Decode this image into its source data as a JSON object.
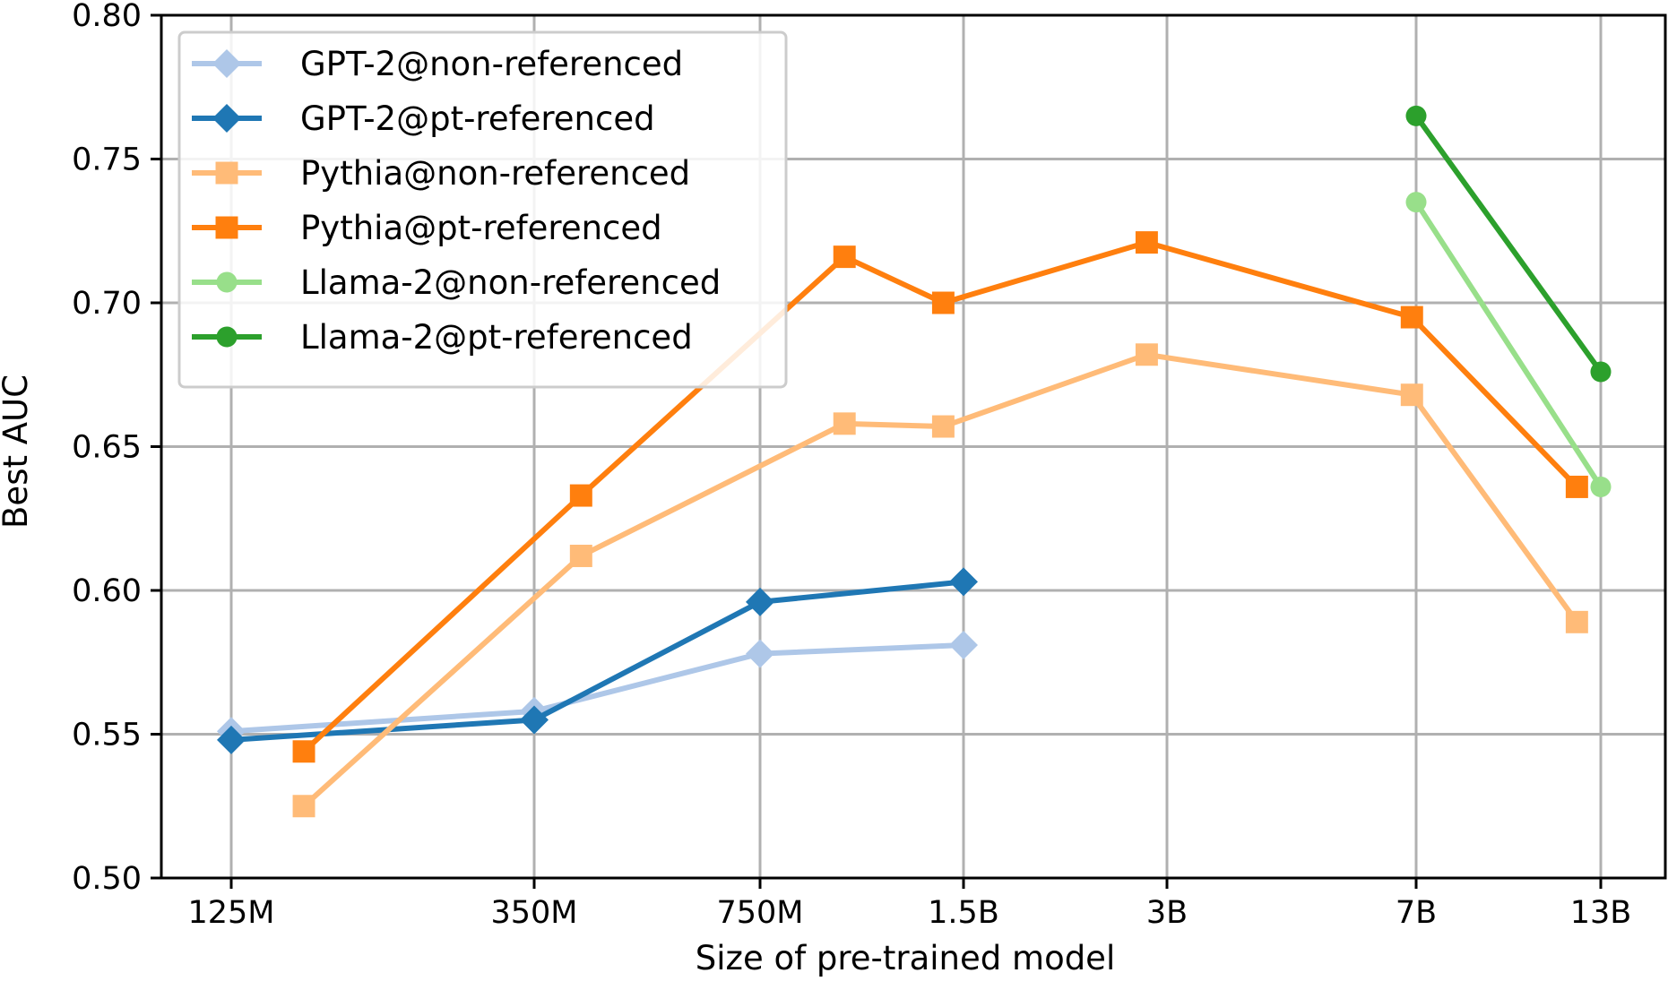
{
  "chart_data": {
    "type": "line",
    "title": "",
    "xlabel": "Size of pre-trained model",
    "ylabel": "Best AUC",
    "x_categories": [
      "125M",
      "350M",
      "750M",
      "1.5B",
      "3B",
      "7B",
      "13B"
    ],
    "x_tick_labels": [
      "125M",
      "350M",
      "750M",
      "1.5B",
      "3B",
      "7B",
      "13B"
    ],
    "x_scale": "log",
    "x_tick_values_millions": [
      125,
      350,
      750,
      1500,
      3000,
      7000,
      13000
    ],
    "ylim": [
      0.5,
      0.8
    ],
    "y_ticks": [
      0.5,
      0.55,
      0.6,
      0.65,
      0.7,
      0.75,
      0.8
    ],
    "y_tick_labels": [
      "0.50",
      "0.55",
      "0.60",
      "0.65",
      "0.70",
      "0.75",
      "0.80"
    ],
    "grid": true,
    "legend_position": "top-left",
    "series": [
      {
        "name": "GPT-2@non-referenced",
        "color": "#aec7e8",
        "marker": "diamond",
        "x": [
          "125M",
          "350M",
          "750M",
          "1.5B"
        ],
        "y": [
          0.551,
          0.558,
          0.578,
          0.581
        ]
      },
      {
        "name": "GPT-2@pt-referenced",
        "color": "#1f77b4",
        "marker": "diamond",
        "x": [
          "125M",
          "350M",
          "750M",
          "1.5B"
        ],
        "y": [
          0.548,
          0.555,
          0.596,
          0.603
        ]
      },
      {
        "name": "Pythia@non-referenced",
        "color": "#ffbb78",
        "marker": "square",
        "x": [
          "160M",
          "410M",
          "1B",
          "1.4B",
          "2.8B",
          "6.9B",
          "12B"
        ],
        "y": [
          0.525,
          0.612,
          0.658,
          0.657,
          0.682,
          0.668,
          0.589
        ]
      },
      {
        "name": "Pythia@pt-referenced",
        "color": "#ff7f0e",
        "marker": "square",
        "x": [
          "160M",
          "410M",
          "1B",
          "1.4B",
          "2.8B",
          "6.9B",
          "12B"
        ],
        "y": [
          0.544,
          0.633,
          0.716,
          0.7,
          0.721,
          0.695,
          0.636
        ]
      },
      {
        "name": "Llama-2@non-referenced",
        "color": "#98df8a",
        "marker": "circle",
        "x": [
          "7B",
          "13B"
        ],
        "y": [
          0.735,
          0.636
        ]
      },
      {
        "name": "Llama-2@pt-referenced",
        "color": "#2ca02c",
        "marker": "circle",
        "x": [
          "7B",
          "13B"
        ],
        "y": [
          0.765,
          0.676
        ]
      }
    ]
  }
}
